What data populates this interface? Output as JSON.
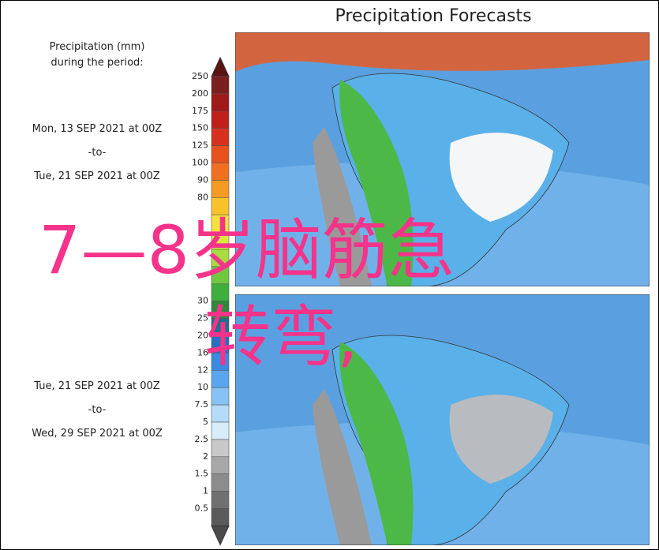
{
  "title": "Precipitation Forecasts",
  "legend": {
    "title_lines": [
      "Precipitation (mm)",
      "during the period:"
    ],
    "labels": [
      250,
      200,
      175,
      150,
      125,
      100,
      90,
      80,
      null,
      null,
      null,
      null,
      null,
      30,
      25,
      20,
      16,
      12,
      10,
      7.5,
      5,
      2.5,
      2,
      1.5,
      1,
      0.5
    ]
  },
  "periods": [
    {
      "start": "Mon, 13 SEP 2021 at 00Z",
      "sep": "-to-",
      "end": "Tue, 21 SEP 2021 at 00Z"
    },
    {
      "start": "Tue, 21 SEP 2021 at 00Z",
      "sep": "-to-",
      "end": "Wed, 29 SEP 2021 at 00Z"
    }
  ],
  "overlay": {
    "lines": [
      "7—8岁脑筋急",
      "转弯,"
    ]
  }
}
